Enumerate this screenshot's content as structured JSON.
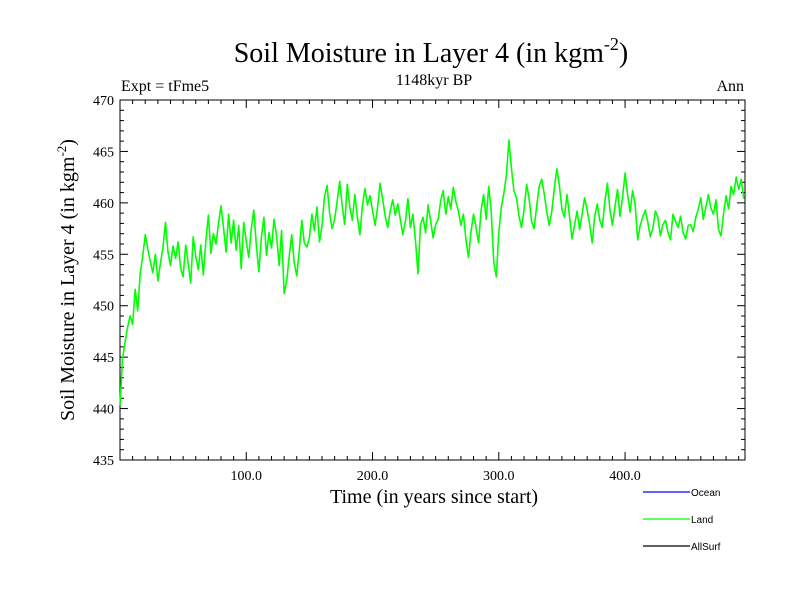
{
  "header": {
    "title_main": "Soil Moisture in Layer 4 (in kgm",
    "title_sup": "-2",
    "title_close": ")",
    "expt": "Expt = tFme5",
    "period": "1148kyr BP",
    "season": "Ann"
  },
  "colors": {
    "ocean": "#0000ff",
    "land": "#00ff00",
    "allsurf": "#000000"
  },
  "chart_data": {
    "type": "line",
    "title": "Soil Moisture in Layer 4 (in kgm-2)",
    "subtitle": "1148kyr BP",
    "xlabel": "Time (in years since start)",
    "ylabel_main": "Soil Moisture in Layer 4 (in kgm",
    "ylabel_sup": "-2",
    "ylabel_close": ")",
    "xlim": [
      0,
      495
    ],
    "ylim": [
      435,
      470
    ],
    "xticks": [
      100,
      200,
      300,
      400
    ],
    "xtick_labels": [
      "100.0",
      "200.0",
      "300.0",
      "400.0"
    ],
    "yticks": [
      435,
      440,
      445,
      450,
      455,
      460,
      465,
      470
    ],
    "ytick_labels": [
      "435",
      "440",
      "445",
      "450",
      "455",
      "460",
      "465",
      "470"
    ],
    "legend": [
      {
        "name": "Ocean",
        "color": "#0000ff"
      },
      {
        "name": "Land",
        "color": "#00ff00"
      },
      {
        "name": "AllSurf",
        "color": "#000000"
      }
    ],
    "legend_position": "bottom-right",
    "series": [
      {
        "name": "Land",
        "color": "#00ff00",
        "x": [
          0,
          2,
          4,
          6,
          8,
          10,
          12,
          14,
          16,
          18,
          20,
          22,
          24,
          26,
          28,
          30,
          32,
          34,
          36,
          38,
          40,
          42,
          44,
          46,
          48,
          50,
          52,
          54,
          56,
          58,
          60,
          62,
          64,
          66,
          68,
          70,
          72,
          74,
          76,
          78,
          80,
          82,
          84,
          86,
          88,
          90,
          92,
          94,
          96,
          98,
          100,
          102,
          104,
          106,
          108,
          110,
          112,
          114,
          116,
          118,
          120,
          122,
          124,
          126,
          128,
          130,
          132,
          134,
          136,
          138,
          140,
          142,
          144,
          146,
          148,
          150,
          152,
          154,
          156,
          158,
          160,
          162,
          164,
          166,
          168,
          170,
          172,
          174,
          176,
          178,
          180,
          182,
          184,
          186,
          188,
          190,
          192,
          194,
          196,
          198,
          200,
          202,
          204,
          206,
          208,
          210,
          212,
          214,
          216,
          218,
          220,
          222,
          224,
          226,
          228,
          230,
          232,
          234,
          236,
          238,
          240,
          242,
          244,
          246,
          248,
          250,
          252,
          254,
          256,
          258,
          260,
          262,
          264,
          266,
          268,
          270,
          272,
          274,
          276,
          278,
          280,
          282,
          284,
          286,
          288,
          290,
          292,
          294,
          296,
          298,
          300,
          302,
          304,
          306,
          308,
          310,
          312,
          314,
          316,
          318,
          320,
          322,
          324,
          326,
          328,
          330,
          332,
          334,
          336,
          338,
          340,
          342,
          344,
          346,
          348,
          350,
          352,
          354,
          356,
          358,
          360,
          362,
          364,
          366,
          368,
          370,
          372,
          374,
          376,
          378,
          380,
          382,
          384,
          386,
          388,
          390,
          392,
          394,
          396,
          398,
          400,
          402,
          404,
          406,
          408,
          410,
          412,
          414,
          416,
          418,
          420,
          422,
          424,
          426,
          428,
          430,
          432,
          434,
          436,
          438,
          440,
          442,
          444,
          446,
          448,
          450,
          452,
          454,
          456,
          458,
          460,
          462,
          464,
          466,
          468,
          470,
          472,
          474,
          476,
          478,
          480,
          482,
          484,
          486,
          488,
          490,
          492,
          494
        ],
        "y": [
          440.3,
          444.8,
          446.5,
          447.9,
          449.0,
          448.2,
          451.6,
          449.5,
          453.1,
          454.8,
          456.9,
          455.5,
          454.3,
          453.2,
          455.0,
          452.4,
          454.1,
          455.6,
          458.1,
          455.2,
          453.9,
          455.8,
          454.6,
          456.2,
          453.7,
          452.8,
          455.9,
          454.1,
          452.2,
          456.7,
          454.8,
          453.5,
          455.9,
          453.0,
          456.3,
          458.8,
          455.1,
          457.0,
          456.0,
          458.0,
          459.7,
          457.6,
          455.2,
          458.9,
          456.1,
          458.3,
          455.4,
          457.8,
          453.6,
          458.1,
          456.2,
          454.7,
          457.5,
          459.3,
          455.8,
          453.3,
          456.7,
          458.6,
          454.9,
          457.1,
          455.6,
          458.4,
          456.8,
          453.9,
          457.3,
          451.2,
          452.4,
          454.8,
          456.9,
          454.2,
          452.9,
          455.4,
          458.3,
          456.1,
          455.7,
          456.6,
          458.9,
          457.3,
          459.6,
          456.2,
          457.8,
          460.6,
          461.7,
          459.0,
          457.5,
          458.4,
          460.2,
          462.1,
          459.7,
          457.9,
          461.8,
          459.6,
          458.3,
          460.8,
          458.6,
          456.9,
          459.7,
          461.4,
          459.8,
          460.7,
          459.3,
          457.8,
          459.6,
          461.9,
          460.4,
          458.7,
          457.6,
          459.2,
          460.3,
          458.8,
          459.9,
          458.4,
          456.9,
          458.2,
          460.4,
          457.6,
          458.9,
          456.3,
          453.1,
          457.9,
          458.6,
          457.1,
          459.8,
          458.3,
          456.6,
          457.9,
          458.4,
          460.2,
          461.2,
          458.9,
          460.6,
          459.4,
          461.5,
          460.1,
          459.2,
          457.8,
          458.9,
          456.4,
          454.7,
          457.2,
          458.9,
          457.6,
          456.1,
          459.3,
          460.8,
          458.4,
          461.6,
          459.2,
          454.3,
          452.8,
          457.1,
          459.6,
          460.9,
          462.7,
          466.1,
          463.4,
          461.2,
          460.5,
          458.7,
          457.6,
          459.3,
          461.8,
          460.4,
          458.2,
          457.5,
          459.7,
          461.6,
          462.3,
          460.9,
          459.1,
          457.8,
          459.2,
          461.4,
          463.3,
          461.7,
          459.4,
          458.6,
          460.8,
          458.7,
          456.5,
          457.8,
          459.2,
          457.4,
          458.9,
          460.5,
          459.3,
          457.9,
          456.1,
          458.7,
          459.9,
          458.3,
          457.6,
          460.1,
          461.9,
          459.4,
          457.8,
          459.6,
          461.3,
          458.7,
          460.5,
          462.9,
          460.8,
          459.1,
          461.2,
          459.8,
          456.4,
          457.8,
          458.6,
          459.3,
          458.1,
          456.7,
          457.5,
          459.2,
          458.6,
          456.8,
          457.9,
          458.3,
          457.1,
          456.4,
          458.9,
          458.2,
          457.6,
          458.7,
          457.1,
          456.5,
          457.8,
          457.9,
          457.2,
          458.6,
          459.4,
          460.5,
          458.4,
          459.6,
          460.8,
          459.5,
          458.9,
          460.3,
          457.4,
          456.8,
          458.9,
          460.7,
          459.4,
          461.6,
          460.8,
          462.5,
          461.3,
          462.3,
          460.4
        ]
      }
    ]
  }
}
